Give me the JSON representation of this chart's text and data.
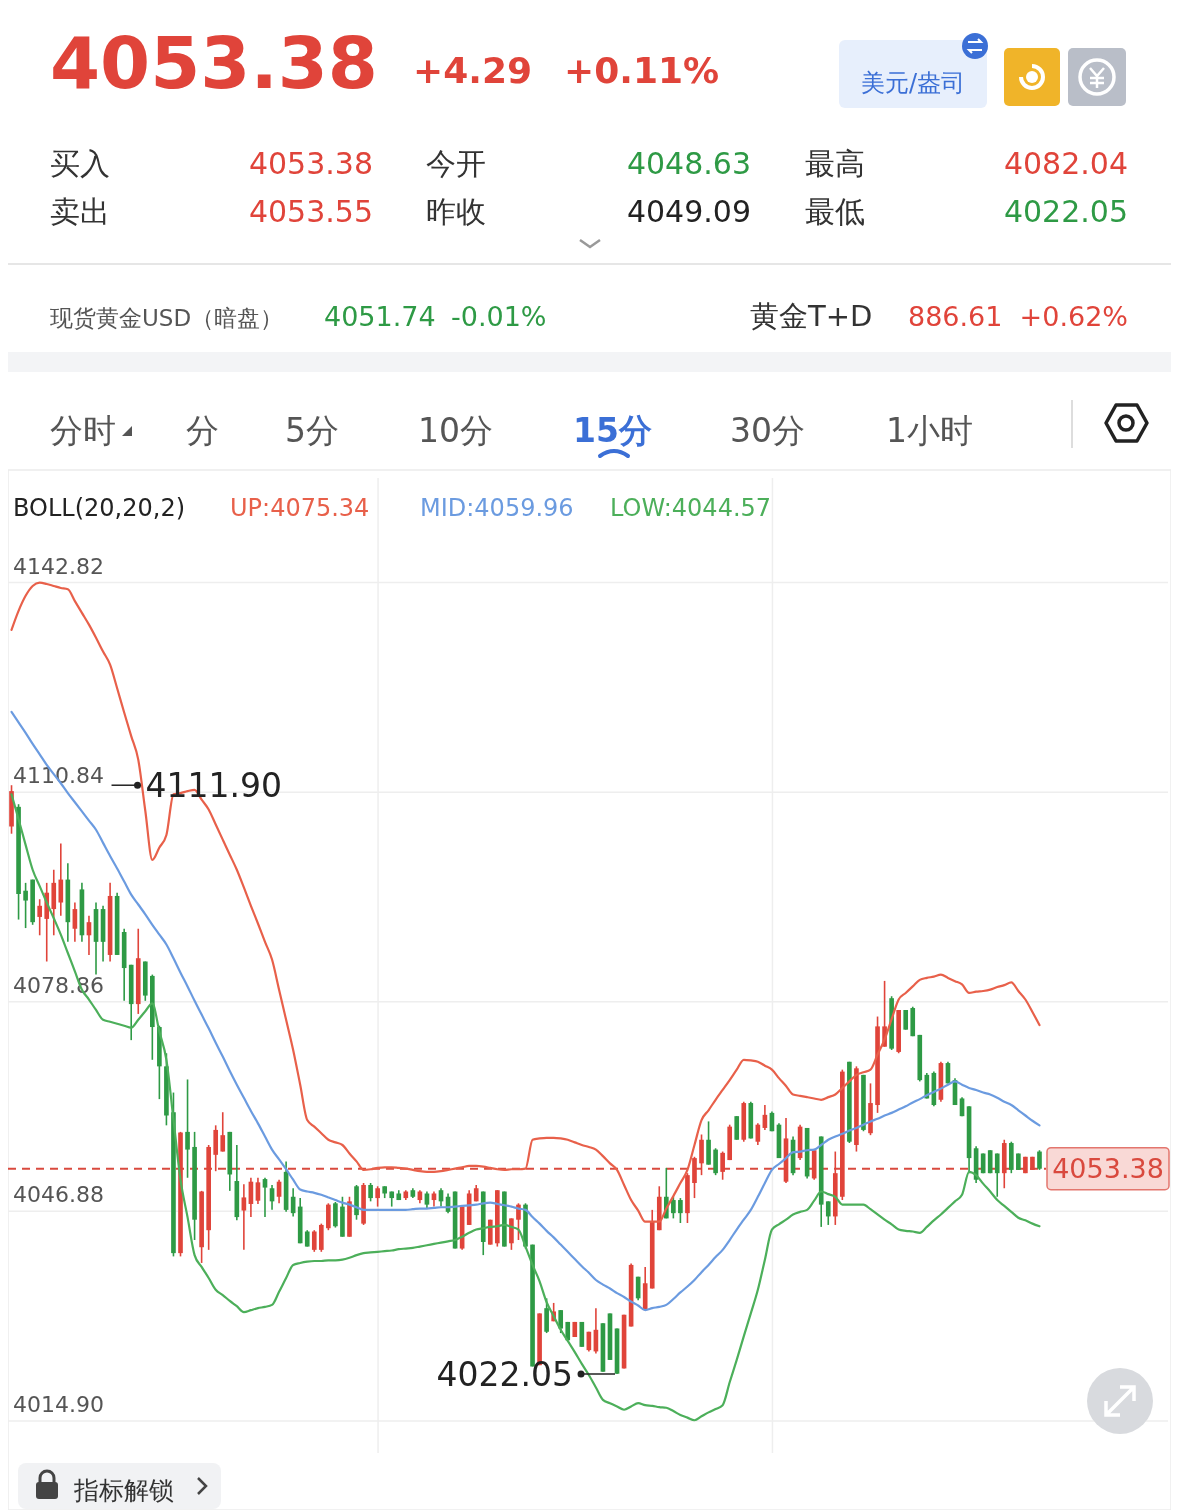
{
  "chart_data": {
    "type": "candlestick",
    "title": "4053.38",
    "categories": [
      null,
      null,
      null,
      null,
      null,
      null,
      null,
      null,
      null,
      null,
      null,
      null,
      null,
      null,
      null,
      null,
      null,
      null,
      null,
      null,
      null,
      null,
      null,
      null,
      null,
      null,
      null,
      null,
      null,
      null,
      null,
      null,
      null,
      null,
      null,
      null,
      null,
      null,
      null,
      null,
      null,
      null,
      null,
      null,
      null,
      null,
      null,
      null,
      null,
      null,
      null,
      null,
      null,
      null,
      null,
      null,
      null,
      null,
      null,
      null,
      null,
      null,
      null,
      null,
      null,
      null,
      null,
      null,
      null,
      null,
      null,
      null,
      null,
      null,
      null,
      null,
      null,
      null,
      null,
      null,
      null,
      null,
      null,
      null,
      null,
      null,
      null,
      null,
      null,
      null,
      null,
      null,
      null,
      null,
      null,
      null,
      null,
      null,
      null,
      null,
      null,
      null,
      null,
      null,
      null,
      null,
      null,
      null,
      null,
      null,
      null,
      null,
      null,
      null,
      null,
      null,
      null,
      null,
      null,
      null,
      null,
      null,
      null,
      null,
      null,
      null,
      null,
      null,
      null,
      null,
      null,
      null,
      null,
      null,
      null,
      null,
      null,
      null,
      null,
      null,
      null,
      null,
      null,
      null,
      null,
      null,
      null
    ],
    "ohlc": [
      [
        4105.6,
        4111.9,
        4104.5,
        4111.0
      ],
      [
        4108.6,
        4109.0,
        4091.4,
        4095.3
      ],
      [
        4095.8,
        4097.0,
        4090.1,
        4094.3
      ],
      [
        4097.5,
        4097.5,
        4090.6,
        4091.0
      ],
      [
        4091.8,
        4094.5,
        4089.0,
        4093.5
      ],
      [
        4091.5,
        4097.0,
        4085.0,
        4095.5
      ],
      [
        4093.0,
        4099.0,
        4089.0,
        4097.0
      ],
      [
        4094.0,
        4103.0,
        4092.0,
        4097.5
      ],
      [
        4097.5,
        4100.0,
        4088.0,
        4091.0
      ],
      [
        4090.0,
        4094.0,
        4088.0,
        4093.0
      ],
      [
        4096.0,
        4097.0,
        4088.0,
        4089.0
      ],
      [
        4089.0,
        4092.0,
        4086.0,
        4091.0
      ],
      [
        4093.0,
        4094.0,
        4083.0,
        4088.0
      ],
      [
        4093.0,
        4093.5,
        4085.0,
        4088.0
      ],
      [
        4086.0,
        4097.0,
        4085.0,
        4095.0
      ],
      [
        4095.0,
        4095.5,
        4086.0,
        4086.0
      ],
      [
        4089.5,
        4090.0,
        4079.0,
        4084.0
      ],
      [
        4084.5,
        4084.5,
        4073.0,
        4078.5
      ],
      [
        4078.5,
        4090.0,
        4077.0,
        4085.5
      ],
      [
        4085.0,
        4085.0,
        4079.0,
        4079.8
      ],
      [
        4082.8,
        4083.0,
        4070.0,
        4075.0
      ],
      [
        4075.0,
        4075.2,
        4064.0,
        4069.0
      ],
      [
        4069.0,
        4071.0,
        4060.0,
        4061.5
      ],
      [
        4062.0,
        4065.0,
        4040.0,
        4040.5
      ],
      [
        4040.5,
        4059.0,
        4040.0,
        4058.9
      ],
      [
        4059.0,
        4067.0,
        4052.0,
        4056.3
      ],
      [
        4056.7,
        4059.0,
        4042.5,
        4045.6
      ],
      [
        4041.4,
        4050.0,
        4039.0,
        4049.9
      ],
      [
        4044.0,
        4057.0,
        4041.0,
        4056.7
      ],
      [
        4055.5,
        4060.0,
        4053.0,
        4059.3
      ],
      [
        4056.0,
        4062.0,
        4056.0,
        4058.5
      ],
      [
        4059.0,
        4059.0,
        4050.0,
        4052.5
      ],
      [
        4051.5,
        4057.0,
        4045.5,
        4046.0
      ],
      [
        4047.0,
        4051.0,
        4041.0,
        4049.0
      ],
      [
        4048.0,
        4052.0,
        4046.0,
        4051.4
      ],
      [
        4048.5,
        4052.0,
        4048.0,
        4051.3
      ],
      [
        4051.8,
        4052.0,
        4046.0,
        4050.5
      ],
      [
        4050.4,
        4050.9,
        4047.1,
        4048.4
      ],
      [
        4049.1,
        4051.7,
        4048.1,
        4051.4
      ],
      [
        4052.9,
        4054.5,
        4046.8,
        4047.1
      ],
      [
        4049.1,
        4050.4,
        4046.1,
        4046.6
      ],
      [
        4047.6,
        4048.9,
        4042.0,
        4042.0
      ],
      [
        4043.8,
        4044.0,
        4041.5,
        4041.5
      ],
      [
        4041.0,
        4044.0,
        4040.7,
        4043.8
      ],
      [
        4041.0,
        4045.0,
        4040.7,
        4044.8
      ],
      [
        4044.3,
        4048.1,
        4044.0,
        4047.9
      ],
      [
        4048.1,
        4048.3,
        4044.4,
        4044.6
      ],
      [
        4047.6,
        4049.1,
        4043.0,
        4043.0
      ],
      [
        4043.0,
        4049.1,
        4043.0,
        4048.4
      ],
      [
        4050.7,
        4050.9,
        4045.6,
        4046.3
      ],
      [
        4045.0,
        4051.2,
        4044.8,
        4050.9
      ],
      [
        4050.9,
        4051.2,
        4048.4,
        4048.9
      ],
      [
        4048.9,
        4050.7,
        4047.6,
        4050.4
      ],
      [
        4050.7,
        4050.7,
        4048.9,
        4049.6
      ],
      [
        4049.9,
        4049.9,
        4047.6,
        4048.9
      ],
      [
        4049.6,
        4050.1,
        4048.6,
        4048.6
      ],
      [
        4048.9,
        4050.1,
        4048.6,
        4049.9
      ],
      [
        4050.1,
        4050.4,
        4048.9,
        4049.1
      ],
      [
        4048.6,
        4050.1,
        4048.1,
        4049.9
      ],
      [
        4049.6,
        4049.9,
        4047.4,
        4047.9
      ],
      [
        4048.6,
        4049.9,
        4047.6,
        4049.6
      ],
      [
        4050.1,
        4050.4,
        4047.6,
        4048.4
      ],
      [
        4049.1,
        4049.6,
        4046.6,
        4046.8
      ],
      [
        4049.9,
        4049.9,
        4041.2,
        4041.2
      ],
      [
        4041.2,
        4047.6,
        4041.0,
        4047.6
      ],
      [
        4044.8,
        4050.1,
        4044.8,
        4049.6
      ],
      [
        4048.4,
        4050.9,
        4048.4,
        4050.4
      ],
      [
        4049.9,
        4049.9,
        4040.2,
        4042.2
      ],
      [
        4041.8,
        4045.6,
        4041.8,
        4045.6
      ],
      [
        4042.0,
        4050.1,
        4041.5,
        4050.1
      ],
      [
        4049.9,
        4049.9,
        4041.5,
        4041.5
      ],
      [
        4042.0,
        4045.8,
        4041.0,
        4045.8
      ],
      [
        4045.6,
        4048.1,
        4042.5,
        4047.9
      ],
      [
        4047.9,
        4048.1,
        4041.2,
        4041.5
      ],
      [
        4041.8,
        4041.8,
        4023.2,
        4023.2
      ],
      [
        4023.4,
        4031.3,
        4023.4,
        4031.3
      ],
      [
        4032.1,
        4033.6,
        4028.3,
        4028.5
      ],
      [
        4030.1,
        4032.9,
        4030.1,
        4031.6
      ],
      [
        4031.8,
        4031.8,
        4028.3,
        4029.0
      ],
      [
        4030.0,
        4030.0,
        4027.2,
        4027.2
      ],
      [
        4027.7,
        4030.0,
        4027.7,
        4030.0
      ],
      [
        4030.0,
        4030.0,
        4026.2,
        4026.2
      ],
      [
        4025.7,
        4028.5,
        4025.5,
        4028.5
      ],
      [
        4025.5,
        4032.1,
        4025.2,
        4028.8
      ],
      [
        4029.8,
        4029.8,
        4022.4,
        4022.4
      ],
      [
        4031.3,
        4031.3,
        4024.2,
        4024.2
      ],
      [
        4029.0,
        4029.0,
        4022.05,
        4022.1
      ],
      [
        4022.9,
        4031.1,
        4022.9,
        4031.1
      ],
      [
        4029.3,
        4038.9,
        4029.3,
        4038.7
      ],
      [
        4036.9,
        4036.9,
        4033.3,
        4033.6
      ],
      [
        4031.8,
        4038.4,
        4031.8,
        4035.9
      ],
      [
        4035.1,
        4047.1,
        4035.1,
        4045.3
      ],
      [
        4044.0,
        4050.7,
        4044.0,
        4049.1
      ],
      [
        4049.1,
        4053.5,
        4045.8,
        4045.8
      ],
      [
        4048.6,
        4049.1,
        4045.8,
        4046.6
      ],
      [
        4048.6,
        4048.9,
        4045.1,
        4046.6
      ],
      [
        4046.6,
        4052.7,
        4045.1,
        4052.4
      ],
      [
        4051.2,
        4055.2,
        4048.9,
        4055.0
      ],
      [
        4054.2,
        4058.6,
        4052.4,
        4057.8
      ],
      [
        4057.8,
        4060.6,
        4054.0,
        4054.0
      ],
      [
        4056.3,
        4056.5,
        4052.4,
        4052.7
      ],
      [
        4052.9,
        4056.0,
        4051.7,
        4055.8
      ],
      [
        4054.7,
        4060.1,
        4054.7,
        4059.8
      ],
      [
        4061.4,
        4061.4,
        4057.8,
        4057.8
      ],
      [
        4057.8,
        4063.6,
        4057.5,
        4063.4
      ],
      [
        4063.4,
        4063.6,
        4058.0,
        4058.0
      ],
      [
        4057.5,
        4060.3,
        4057.0,
        4060.1
      ],
      [
        4059.6,
        4063.1,
        4059.3,
        4061.6
      ],
      [
        4061.9,
        4062.1,
        4059.1,
        4059.1
      ],
      [
        4060.1,
        4060.3,
        4055.0,
        4055.0
      ],
      [
        4051.4,
        4061.1,
        4051.2,
        4058.0
      ],
      [
        4057.8,
        4058.3,
        4052.4,
        4052.7
      ],
      [
        4055.0,
        4060.1,
        4054.7,
        4059.8
      ],
      [
        4059.6,
        4059.6,
        4051.9,
        4052.2
      ],
      [
        4051.9,
        4056.2,
        4051.7,
        4056.2
      ],
      [
        4058.3,
        4058.3,
        4044.5,
        4047.9
      ],
      [
        4048.4,
        4048.4,
        4044.8,
        4046.1
      ],
      [
        4046.1,
        4056.0,
        4044.8,
        4052.7
      ],
      [
        4049.1,
        4068.5,
        4048.6,
        4068.2
      ],
      [
        4069.7,
        4069.7,
        4057.3,
        4057.5
      ],
      [
        4057.0,
        4069.0,
        4056.0,
        4068.7
      ],
      [
        4067.7,
        4067.7,
        4059.1,
        4059.3
      ],
      [
        4058.8,
        4066.4,
        4058.5,
        4063.4
      ],
      [
        4063.1,
        4076.6,
        4061.9,
        4075.1
      ],
      [
        4072.0,
        4082.04,
        4072.0,
        4075.1
      ],
      [
        4079.4,
        4079.7,
        4071.5,
        4071.7
      ],
      [
        4071.2,
        4077.6,
        4071.0,
        4077.6
      ],
      [
        4077.6,
        4077.6,
        4074.6,
        4074.6
      ],
      [
        4077.9,
        4078.1,
        4073.6,
        4073.6
      ],
      [
        4073.8,
        4073.8,
        4066.7,
        4066.9
      ],
      [
        4067.7,
        4068.0,
        4064.1,
        4064.1
      ],
      [
        4068.0,
        4068.2,
        4062.9,
        4063.1
      ],
      [
        4063.9,
        4069.7,
        4063.6,
        4069.5
      ],
      [
        4069.5,
        4069.7,
        4066.4,
        4066.4
      ],
      [
        4066.9,
        4067.2,
        4063.1,
        4063.1
      ],
      [
        4064.1,
        4064.3,
        4061.4,
        4061.4
      ],
      [
        4062.9,
        4062.9,
        4052.7,
        4055.0
      ],
      [
        4056.5,
        4056.8,
        4051.2,
        4051.7
      ],
      [
        4055.7,
        4055.7,
        4052.7,
        4052.7
      ],
      [
        4056.2,
        4056.2,
        4052.7,
        4052.7
      ],
      [
        4055.7,
        4055.7,
        4049.1,
        4052.7
      ],
      [
        4052.7,
        4057.8,
        4050.4,
        4057.3
      ],
      [
        4057.3,
        4057.5,
        4052.7,
        4053.2
      ],
      [
        4055.7,
        4055.7,
        4053.2,
        4053.2
      ],
      [
        4052.7,
        4055.2,
        4052.7,
        4055.2
      ],
      [
        4053.2,
        4055.2,
        4053.2,
        4055.2
      ],
      [
        4056.0,
        4056.2,
        4053.2,
        4053.38
      ]
    ],
    "series": [
      {
        "type": "line",
        "name": "UP:4075.34",
        "color": "#e8604a",
        "values": [
          4135.6,
          4138.5,
          4140.8,
          4142.3,
          4142.8,
          4142.6,
          4142.3,
          4142.0,
          4141.8,
          4140.0,
          4138.2,
          4136.4,
          4134.4,
          4132.3,
          4130.3,
          4126.7,
          4123.0,
          4119.4,
          4115.8,
          4108.0,
          4100.5,
          4102.4,
          4104.3,
          4110.5,
          4110.7,
          4111.0,
          4111.2,
          4109.7,
          4108.2,
          4105.9,
          4103.6,
          4101.3,
          4099.0,
          4096.3,
          4093.5,
          4090.8,
          4088.0,
          4085.3,
          4080.7,
          4076.1,
          4071.5,
          4066.2,
          4060.8,
          4059.8,
          4058.8,
          4057.8,
          4057.4,
          4057.0,
          4055.7,
          4054.5,
          4053.2,
          4053.3,
          4053.5,
          4053.6,
          4053.6,
          4053.5,
          4053.4,
          4053.2,
          4053.0,
          4052.9,
          4052.9,
          4053.0,
          4053.2,
          4053.4,
          4053.6,
          4053.8,
          4053.8,
          4053.7,
          4053.5,
          4053.3,
          4053.2,
          4053.3,
          4053.3,
          4053.4,
          4057.8,
          4058.0,
          4058.1,
          4058.1,
          4058.0,
          4057.8,
          4057.4,
          4057.0,
          4056.7,
          4056.3,
          4055.3,
          4054.2,
          4053.2,
          4050.9,
          4048.6,
          4047.0,
          4045.3,
          4045.3,
          4045.3,
          4047.3,
          4049.2,
          4051.2,
          4053.2,
          4057.0,
          4060.8,
          4062.3,
          4063.9,
          4065.4,
          4066.9,
          4068.5,
          4070.0,
          4069.9,
          4069.7,
          4069.1,
          4068.5,
          4067.2,
          4066.0,
          4064.7,
          4064.5,
          4064.3,
          4064.1,
          4063.9,
          4064.3,
          4064.7,
          4065.7,
          4066.7,
          4067.7,
          4068.1,
          4068.5,
          4070.8,
          4073.1,
          4076.2,
          4079.2,
          4080.2,
          4081.2,
          4082.2,
          4082.5,
          4082.7,
          4083.0,
          4082.5,
          4082.0,
          4081.5,
          4080.2,
          4080.4,
          4080.5,
          4080.7,
          4081.1,
          4081.4,
          4081.8,
          4080.5,
          4079.2,
          4077.3,
          4075.3
        ]
      },
      {
        "type": "line",
        "name": "MID:4059.96",
        "color": "#6b9be0",
        "values": [
          4123.1,
          4121.5,
          4119.9,
          4118.2,
          4116.6,
          4115.0,
          4113.6,
          4112.2,
          4110.7,
          4109.3,
          4107.9,
          4106.5,
          4105.1,
          4103.1,
          4101.1,
          4099.2,
          4097.2,
          4095.2,
          4093.7,
          4092.2,
          4090.6,
          4089.1,
          4087.6,
          4085.5,
          4083.3,
          4081.2,
          4079.0,
          4076.9,
          4074.8,
          4072.6,
          4070.5,
          4068.3,
          4066.2,
          4064.2,
          4062.2,
          4060.3,
          4058.3,
          4056.3,
          4054.8,
          4053.3,
          4051.7,
          4050.2,
          4049.9,
          4049.7,
          4049.4,
          4049.0,
          4048.6,
          4048.2,
          4047.9,
          4047.5,
          4047.1,
          4047.1,
          4047.1,
          4047.1,
          4047.1,
          4047.1,
          4047.1,
          4047.2,
          4047.3,
          4047.3,
          4047.4,
          4047.5,
          4047.5,
          4047.6,
          4047.7,
          4047.8,
          4047.9,
          4048.1,
          4048.2,
          4048.0,
          4047.8,
          4047.6,
          4047.3,
          4047.1,
          4046.0,
          4045.0,
          4043.9,
          4042.9,
          4041.8,
          4040.7,
          4039.6,
          4038.5,
          4037.5,
          4036.4,
          4035.7,
          4035.1,
          4034.4,
          4033.8,
          4033.1,
          4032.5,
          4031.8,
          4032.1,
          4032.3,
          4032.6,
          4033.5,
          4034.5,
          4035.4,
          4036.4,
          4037.6,
          4038.7,
          4039.9,
          4041.0,
          4042.5,
          4044.1,
          4045.6,
          4047.1,
          4049.1,
          4051.2,
          4053.2,
          4054.1,
          4055.0,
          4055.9,
          4056.0,
          4056.2,
          4056.3,
          4057.0,
          4057.8,
          4058.3,
          4058.7,
          4059.2,
          4059.6,
          4060.1,
          4060.6,
          4061.0,
          4061.5,
          4061.9,
          4062.4,
          4062.9,
          4063.5,
          4064.0,
          4064.6,
          4065.1,
          4065.6,
          4066.2,
          4066.7,
          4066.2,
          4065.7,
          4065.4,
          4065.0,
          4064.7,
          4064.2,
          4063.6,
          4063.1,
          4062.3,
          4061.5,
          4060.7,
          4060.0
        ]
      },
      {
        "type": "line",
        "name": "LOW:4044.57",
        "color": "#4caf5a",
        "values": [
          4110.5,
          4106.7,
          4102.8,
          4099.0,
          4096.5,
          4094.0,
          4091.6,
          4089.1,
          4086.3,
          4083.5,
          4080.7,
          4079.2,
          4077.6,
          4076.1,
          4075.8,
          4075.5,
          4075.2,
          4074.9,
          4076.1,
          4077.4,
          4078.6,
          4074.3,
          4070.0,
          4060.9,
          4051.7,
          4046.0,
          4040.2,
          4038.4,
          4036.7,
          4034.9,
          4034.1,
          4033.2,
          4032.4,
          4031.5,
          4031.8,
          4032.1,
          4032.3,
          4032.6,
          4034.6,
          4036.7,
          4038.7,
          4039.0,
          4039.2,
          4039.3,
          4039.3,
          4039.4,
          4039.4,
          4039.5,
          4039.8,
          4040.2,
          4040.5,
          4040.6,
          4040.7,
          4040.8,
          4040.9,
          4041.1,
          4041.2,
          4041.3,
          4041.5,
          4041.7,
          4041.9,
          4042.1,
          4042.3,
          4042.5,
          4043.0,
          4043.6,
          4044.1,
          4044.3,
          4044.5,
          4044.6,
          4044.8,
          4044.5,
          4044.1,
          4041.5,
          4038.7,
          4036.2,
          4033.0,
          4030.9,
          4028.8,
          4027.1,
          4025.4,
          4023.6,
          4021.9,
          4020.0,
          4018.1,
          4017.6,
          4017.1,
          4016.6,
          4017.1,
          4017.6,
          4017.3,
          4017.2,
          4017.0,
          4016.9,
          4016.4,
          4015.8,
          4015.4,
          4015.0,
          4015.6,
          4016.2,
          4016.7,
          4017.3,
          4020.8,
          4024.2,
          4027.8,
          4031.3,
          4034.9,
          4039.5,
          4044.1,
          4044.9,
          4045.6,
          4046.4,
          4046.8,
          4047.1,
          4048.5,
          4049.9,
          4049.5,
          4049.1,
          4047.9,
          4047.9,
          4047.9,
          4047.9,
          4047.2,
          4046.4,
          4045.6,
          4044.9,
          4044.1,
          4043.9,
          4043.8,
          4043.6,
          4044.5,
          4045.5,
          4046.4,
          4047.4,
          4048.4,
          4049.4,
          4052.9,
          4052.4,
          4051.1,
          4049.9,
          4048.6,
          4047.7,
          4046.8,
          4045.9,
          4045.5,
          4045.0,
          4044.6
        ]
      }
    ],
    "legend_title": "BOLL(20,20,2)",
    "legend": "top",
    "ylim": [
      4010,
      4160
    ],
    "yticks": [
      4142.82,
      4110.84,
      4078.86,
      4046.88,
      {
        "value": 4014.9,
        "label": "4014.90"
      }
    ],
    "tick_labels": "y",
    "grid": "y",
    "ref_lines": [
      {
        "axis": "y",
        "value": 4053.38,
        "label": "4053.38",
        "color": "#d9493e",
        "line_style": "dashed"
      }
    ],
    "annotations": [
      "+4.29",
      "+0.11%",
      "美元/盎司",
      "买入",
      "4053.38",
      "卖出",
      "4053.55",
      "今开",
      "4048.63",
      "昨收",
      "4049.09",
      "最高",
      "4082.04",
      "最低",
      "4022.05",
      "现货黄金USD（暗盘）",
      "4051.74",
      "-0.01%",
      "黄金T+D",
      "886.61",
      "+0.62%",
      "分时",
      "分",
      "5分",
      "10分",
      "15分",
      "30分",
      "1小时",
      "指标解锁",
      "4111.90",
      "4022.05"
    ]
  }
}
